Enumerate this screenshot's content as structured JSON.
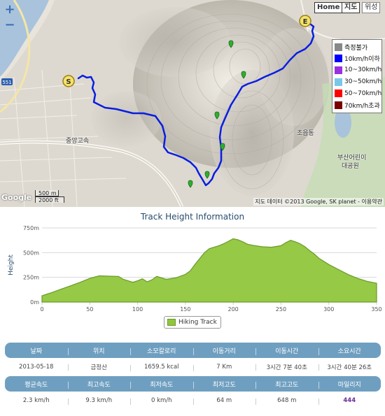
{
  "map": {
    "zoom_in": "+",
    "zoom_out": "−",
    "maptypes": [
      {
        "label": "Home",
        "active": true
      },
      {
        "label": "지도",
        "active": true
      },
      {
        "label": "위성",
        "active": false
      }
    ],
    "speed_legend": [
      {
        "label": "측정불가",
        "color": "#888888"
      },
      {
        "label": "10km/h이하",
        "color": "#0000ff"
      },
      {
        "label": "10~30km/h",
        "color": "#9b30e0"
      },
      {
        "label": "30~50km/h",
        "color": "#7ac8e8"
      },
      {
        "label": "50~70km/h",
        "color": "#ff0000"
      },
      {
        "label": "70km/h초과",
        "color": "#7a0000"
      }
    ],
    "start_marker": "S",
    "end_marker": "E",
    "scale_metric": "500 m",
    "scale_imperial": "2000 ft",
    "logo": "Google",
    "attribution": "지도 데이터 ©2013 Google, SK planet - 이용약관",
    "places": [
      {
        "label": "중앙고속"
      },
      {
        "label": "초읍동"
      },
      {
        "label": "부산어린이"
      },
      {
        "label": "대공원"
      }
    ],
    "road_shield": "551",
    "track_color": "#0a1ee0",
    "waypoint_color": "#2fae2f"
  },
  "chart_data": {
    "type": "area",
    "title": "Track Height Information",
    "xlabel": "",
    "ylabel": "Height",
    "x_ticks": [
      0,
      50,
      100,
      150,
      200,
      250,
      300,
      350
    ],
    "y_ticks": [
      "0m",
      "250m",
      "500m",
      "750m"
    ],
    "ylim": [
      0,
      750
    ],
    "xlim": [
      0,
      350
    ],
    "series": [
      {
        "name": "Hiking Track",
        "color": "#90c63b",
        "x": [
          0,
          5,
          10,
          20,
          30,
          40,
          50,
          60,
          70,
          80,
          85,
          90,
          95,
          100,
          105,
          110,
          115,
          120,
          130,
          140,
          150,
          155,
          160,
          165,
          170,
          175,
          180,
          185,
          190,
          195,
          200,
          205,
          210,
          215,
          220,
          230,
          240,
          250,
          255,
          260,
          265,
          270,
          275,
          280,
          285,
          290,
          300,
          310,
          320,
          330,
          340,
          350
        ],
        "y": [
          64,
          80,
          95,
          130,
          165,
          200,
          240,
          265,
          262,
          260,
          230,
          215,
          200,
          215,
          235,
          205,
          225,
          260,
          230,
          245,
          280,
          315,
          380,
          440,
          500,
          540,
          555,
          570,
          590,
          615,
          640,
          630,
          610,
          585,
          575,
          560,
          555,
          570,
          600,
          625,
          610,
          590,
          560,
          520,
          485,
          440,
          380,
          330,
          280,
          240,
          210,
          190
        ]
      }
    ]
  },
  "stats": {
    "headers": [
      "날짜",
      "위치",
      "소모칼로리",
      "이동거리",
      "이동시간",
      "소요시간"
    ],
    "values": [
      "2013-05-18",
      "금정산",
      "1659.5 kcal",
      "7 Km",
      "3시간 7분 40초",
      "3시간 40분 26초"
    ],
    "headers2": [
      "평균속도",
      "최고속도",
      "최저속도",
      "최저고도",
      "최고고도",
      "마일리지"
    ],
    "values2": [
      "2.3 km/h",
      "9.3 km/h",
      "0 km/h",
      "64 m",
      "648 m",
      "444"
    ]
  }
}
